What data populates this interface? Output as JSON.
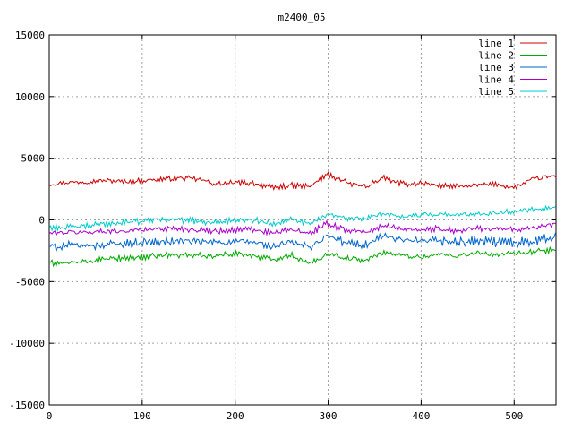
{
  "chart_data": {
    "type": "line",
    "title": "m2400_05",
    "xlim": [
      0,
      545
    ],
    "ylim": [
      -15000,
      15000
    ],
    "x_ticks": [
      0,
      100,
      200,
      300,
      400,
      500
    ],
    "y_ticks": [
      -15000,
      -10000,
      -5000,
      0,
      5000,
      10000,
      15000
    ],
    "x_tick_labels": [
      "0",
      "100",
      "200",
      "300",
      "400",
      "500"
    ],
    "y_tick_labels": [
      "-15000",
      "-10000",
      "-5000",
      "0",
      "5000",
      "10000",
      "15000"
    ],
    "grid": true,
    "legend_position": "top-right",
    "x": [
      0,
      20,
      40,
      60,
      80,
      100,
      120,
      140,
      160,
      180,
      200,
      220,
      240,
      260,
      280,
      300,
      320,
      340,
      360,
      380,
      400,
      420,
      440,
      460,
      480,
      500,
      520,
      545
    ],
    "series": [
      {
        "name": "line 1",
        "color": "#cc0000",
        "values": [
          2900,
          3050,
          3100,
          3200,
          3100,
          3200,
          3300,
          3400,
          3300,
          2900,
          3000,
          3000,
          2600,
          2800,
          2700,
          3700,
          3000,
          2700,
          3400,
          2900,
          3000,
          2800,
          2700,
          2800,
          2900,
          2600,
          3300,
          3600
        ]
      },
      {
        "name": "line 2",
        "color": "#00aa00",
        "values": [
          -3500,
          -3500,
          -3400,
          -3200,
          -3100,
          -3000,
          -2900,
          -2800,
          -2900,
          -2900,
          -2700,
          -2900,
          -3200,
          -2800,
          -3600,
          -2700,
          -3100,
          -3300,
          -2600,
          -2900,
          -3000,
          -2800,
          -2900,
          -2700,
          -2800,
          -2800,
          -2600,
          -2400
        ]
      },
      {
        "name": "line 3",
        "color": "#0066cc",
        "values": [
          -2200,
          -2100,
          -2100,
          -2000,
          -1900,
          -1800,
          -1800,
          -1700,
          -1800,
          -1800,
          -1800,
          -1800,
          -2200,
          -1800,
          -2200,
          -1300,
          -1900,
          -2000,
          -1300,
          -1700,
          -1800,
          -1700,
          -1800,
          -1700,
          -1800,
          -1800,
          -1700,
          -1400
        ]
      },
      {
        "name": "line 4",
        "color": "#aa00cc",
        "values": [
          -1100,
          -1000,
          -1000,
          -900,
          -900,
          -800,
          -700,
          -700,
          -800,
          -900,
          -800,
          -800,
          -1100,
          -800,
          -1100,
          -300,
          -800,
          -1000,
          -500,
          -700,
          -800,
          -700,
          -900,
          -700,
          -700,
          -800,
          -600,
          -400
        ]
      },
      {
        "name": "line 5",
        "color": "#00cccc",
        "values": [
          -600,
          -600,
          -500,
          -300,
          -200,
          -100,
          100,
          0,
          -100,
          -200,
          0,
          0,
          -300,
          100,
          -300,
          500,
          100,
          100,
          500,
          300,
          400,
          500,
          400,
          500,
          600,
          700,
          900,
          1100
        ]
      }
    ]
  }
}
